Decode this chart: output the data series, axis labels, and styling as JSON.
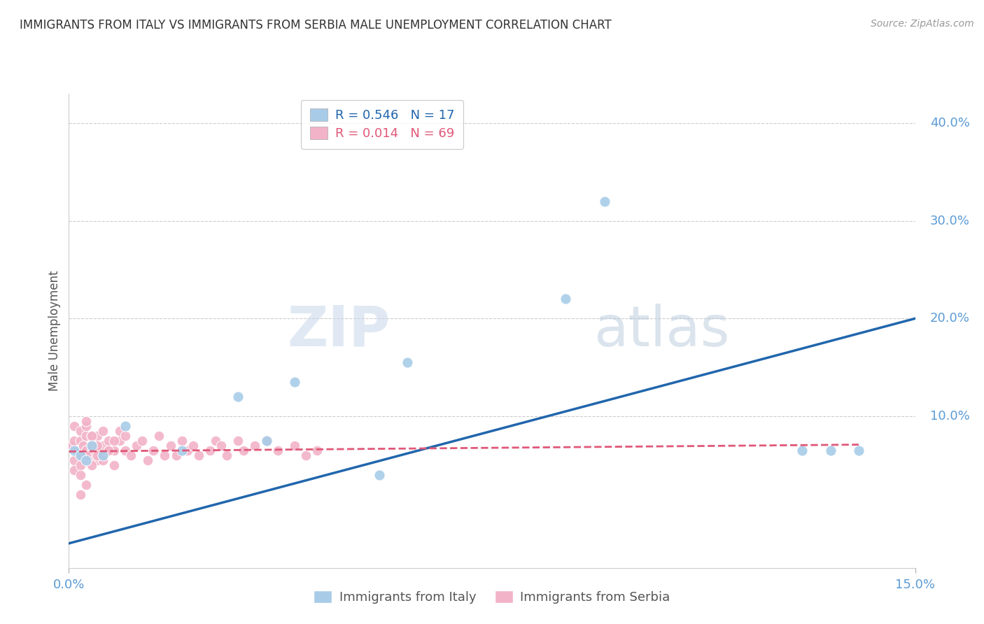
{
  "title": "IMMIGRANTS FROM ITALY VS IMMIGRANTS FROM SERBIA MALE UNEMPLOYMENT CORRELATION CHART",
  "source": "Source: ZipAtlas.com",
  "xlabel_italy": "Immigrants from Italy",
  "xlabel_serbia": "Immigrants from Serbia",
  "ylabel": "Male Unemployment",
  "xlim": [
    0.0,
    0.15
  ],
  "ylim": [
    -0.055,
    0.43
  ],
  "yticks": [
    0.1,
    0.2,
    0.3,
    0.4
  ],
  "italy_R": 0.546,
  "italy_N": 17,
  "serbia_R": 0.014,
  "serbia_N": 69,
  "italy_color": "#a8cce8",
  "serbia_color": "#f2b3c8",
  "italy_line_color": "#2166ac",
  "serbia_line_color": "#e05878",
  "watermark_zip": "ZIP",
  "watermark_atlas": "atlas",
  "italy_x": [
    0.001,
    0.002,
    0.003,
    0.004,
    0.006,
    0.01,
    0.02,
    0.03,
    0.035,
    0.04,
    0.055,
    0.06,
    0.088,
    0.095,
    0.13,
    0.135,
    0.14
  ],
  "italy_y": [
    0.065,
    0.06,
    0.055,
    0.07,
    0.06,
    0.09,
    0.065,
    0.12,
    0.075,
    0.135,
    0.04,
    0.155,
    0.22,
    0.32,
    0.065,
    0.065,
    0.065
  ],
  "serbia_x": [
    0.0005,
    0.001,
    0.001,
    0.001,
    0.0015,
    0.002,
    0.002,
    0.002,
    0.0025,
    0.003,
    0.003,
    0.003,
    0.003,
    0.004,
    0.004,
    0.004,
    0.005,
    0.005,
    0.005,
    0.006,
    0.006,
    0.006,
    0.007,
    0.007,
    0.008,
    0.008,
    0.009,
    0.009,
    0.01,
    0.01,
    0.011,
    0.012,
    0.013,
    0.014,
    0.015,
    0.016,
    0.017,
    0.018,
    0.019,
    0.02,
    0.021,
    0.022,
    0.023,
    0.025,
    0.026,
    0.027,
    0.028,
    0.03,
    0.031,
    0.033,
    0.035,
    0.037,
    0.04,
    0.042,
    0.044,
    0.001,
    0.002,
    0.003,
    0.004,
    0.005,
    0.006,
    0.007,
    0.008,
    0.002,
    0.003,
    0.004,
    0.005,
    0.002,
    0.003
  ],
  "serbia_y": [
    0.07,
    0.055,
    0.075,
    0.09,
    0.065,
    0.06,
    0.075,
    0.085,
    0.07,
    0.055,
    0.065,
    0.08,
    0.09,
    0.07,
    0.08,
    0.06,
    0.065,
    0.08,
    0.055,
    0.07,
    0.085,
    0.06,
    0.065,
    0.075,
    0.05,
    0.065,
    0.075,
    0.085,
    0.065,
    0.08,
    0.06,
    0.07,
    0.075,
    0.055,
    0.065,
    0.08,
    0.06,
    0.07,
    0.06,
    0.075,
    0.065,
    0.07,
    0.06,
    0.065,
    0.075,
    0.07,
    0.06,
    0.075,
    0.065,
    0.07,
    0.075,
    0.065,
    0.07,
    0.06,
    0.065,
    0.045,
    0.05,
    0.06,
    0.08,
    0.07,
    0.055,
    0.065,
    0.075,
    0.04,
    0.095,
    0.05,
    0.06,
    0.02,
    0.03
  ],
  "background_color": "#ffffff",
  "grid_color": "#cccccc",
  "axis_label_color": "#5b9bd5",
  "title_color": "#333333",
  "italy_line_x": [
    0.0,
    0.15
  ],
  "italy_line_y": [
    -0.03,
    0.2
  ],
  "serbia_line_x": [
    0.0,
    0.14
  ],
  "serbia_line_y": [
    0.064,
    0.071
  ]
}
